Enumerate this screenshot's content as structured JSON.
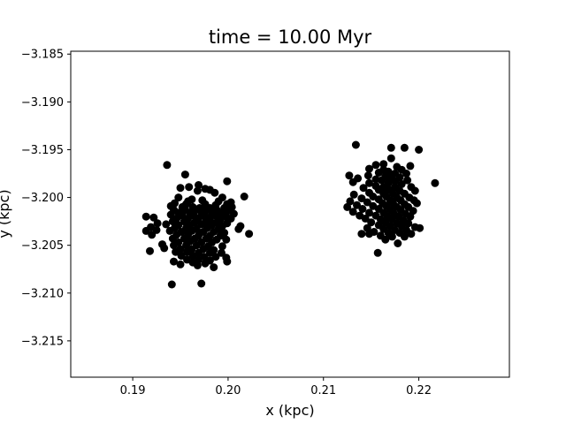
{
  "chart_data": {
    "type": "scatter",
    "title": "time = 10.00 Myr",
    "xlabel": "x (kpc)",
    "ylabel": "y (kpc)",
    "xlim": [
      0.1835,
      0.2295
    ],
    "ylim": [
      -3.2188,
      -3.1847
    ],
    "xticks": [
      0.19,
      0.2,
      0.21,
      0.22
    ],
    "xtick_labels": [
      "0.19",
      "0.20",
      "0.21",
      "0.22"
    ],
    "yticks": [
      -3.185,
      -3.19,
      -3.195,
      -3.2,
      -3.205,
      -3.21,
      -3.215
    ],
    "ytick_labels": [
      "−3.185",
      "−3.190",
      "−3.195",
      "−3.200",
      "−3.205",
      "−3.210",
      "−3.215"
    ],
    "grid": false,
    "marker_color": "#000000",
    "series": [
      {
        "points": [
          [
            0.1936,
            -3.1966
          ],
          [
            0.1955,
            -3.1976
          ],
          [
            0.1999,
            -3.1983
          ],
          [
            0.1969,
            -3.1987
          ],
          [
            0.1959,
            -3.1989
          ],
          [
            0.195,
            -3.199
          ],
          [
            0.1976,
            -3.1991
          ],
          [
            0.1968,
            -3.1993
          ],
          [
            0.1981,
            -3.1992
          ],
          [
            0.1986,
            -3.1995
          ],
          [
            0.2017,
            -3.1999
          ],
          [
            0.1994,
            -3.2
          ],
          [
            0.1948,
            -3.2
          ],
          [
            0.1962,
            -3.2002
          ],
          [
            0.1973,
            -3.2003
          ],
          [
            0.1958,
            -3.2004
          ],
          [
            0.199,
            -3.2004
          ],
          [
            0.2003,
            -3.2005
          ],
          [
            0.1944,
            -3.2006
          ],
          [
            0.1956,
            -3.2007
          ],
          [
            0.1976,
            -3.2007
          ],
          [
            0.1987,
            -3.2008
          ],
          [
            0.1999,
            -3.2007
          ],
          [
            0.194,
            -3.2009
          ],
          [
            0.1952,
            -3.201
          ],
          [
            0.1963,
            -3.201
          ],
          [
            0.197,
            -3.2011
          ],
          [
            0.1981,
            -3.2011
          ],
          [
            0.1996,
            -3.2011
          ],
          [
            0.2004,
            -3.201
          ],
          [
            0.1943,
            -3.2013
          ],
          [
            0.1955,
            -3.2013
          ],
          [
            0.1966,
            -3.2013
          ],
          [
            0.1976,
            -3.2014
          ],
          [
            0.1988,
            -3.2013
          ],
          [
            0.2,
            -3.2014
          ],
          [
            0.1948,
            -3.2016
          ],
          [
            0.196,
            -3.2016
          ],
          [
            0.1972,
            -3.2016
          ],
          [
            0.1983,
            -3.2017
          ],
          [
            0.1993,
            -3.2016
          ],
          [
            0.2006,
            -3.2017
          ],
          [
            0.194,
            -3.2018
          ],
          [
            0.1952,
            -3.2019
          ],
          [
            0.1964,
            -3.2019
          ],
          [
            0.1976,
            -3.202
          ],
          [
            0.1987,
            -3.2019
          ],
          [
            0.1998,
            -3.202
          ],
          [
            0.1914,
            -3.202
          ],
          [
            0.1922,
            -3.2021
          ],
          [
            0.1946,
            -3.2022
          ],
          [
            0.1958,
            -3.2022
          ],
          [
            0.1969,
            -3.2022
          ],
          [
            0.1981,
            -3.2023
          ],
          [
            0.1992,
            -3.2023
          ],
          [
            0.2003,
            -3.2022
          ],
          [
            0.1942,
            -3.2025
          ],
          [
            0.1954,
            -3.2025
          ],
          [
            0.1965,
            -3.2026
          ],
          [
            0.1977,
            -3.2025
          ],
          [
            0.1988,
            -3.2026
          ],
          [
            0.1999,
            -3.2027
          ],
          [
            0.1926,
            -3.2027
          ],
          [
            0.1935,
            -3.2028
          ],
          [
            0.1948,
            -3.2029
          ],
          [
            0.196,
            -3.2029
          ],
          [
            0.1972,
            -3.2028
          ],
          [
            0.1983,
            -3.2029
          ],
          [
            0.1994,
            -3.203
          ],
          [
            0.2013,
            -3.203
          ],
          [
            0.1919,
            -3.2031
          ],
          [
            0.1944,
            -3.2032
          ],
          [
            0.1956,
            -3.2032
          ],
          [
            0.1967,
            -3.2033
          ],
          [
            0.1978,
            -3.2032
          ],
          [
            0.199,
            -3.2033
          ],
          [
            0.2011,
            -3.2033
          ],
          [
            0.1914,
            -3.2035
          ],
          [
            0.1925,
            -3.2034
          ],
          [
            0.1939,
            -3.2035
          ],
          [
            0.1951,
            -3.2036
          ],
          [
            0.1962,
            -3.2035
          ],
          [
            0.1974,
            -3.2036
          ],
          [
            0.1985,
            -3.2036
          ],
          [
            0.1996,
            -3.2037
          ],
          [
            0.2022,
            -3.2038
          ],
          [
            0.192,
            -3.2039
          ],
          [
            0.1946,
            -3.2039
          ],
          [
            0.1958,
            -3.2039
          ],
          [
            0.1969,
            -3.204
          ],
          [
            0.1981,
            -3.204
          ],
          [
            0.1992,
            -3.204
          ],
          [
            0.1942,
            -3.2043
          ],
          [
            0.1954,
            -3.2043
          ],
          [
            0.1965,
            -3.2043
          ],
          [
            0.1977,
            -3.2043
          ],
          [
            0.1988,
            -3.2044
          ],
          [
            0.1998,
            -3.2044
          ],
          [
            0.1948,
            -3.2047
          ],
          [
            0.196,
            -3.2046
          ],
          [
            0.1972,
            -3.2047
          ],
          [
            0.1983,
            -3.2047
          ],
          [
            0.1931,
            -3.2049
          ],
          [
            0.1943,
            -3.205
          ],
          [
            0.1956,
            -3.205
          ],
          [
            0.1967,
            -3.205
          ],
          [
            0.1979,
            -3.2051
          ],
          [
            0.1994,
            -3.2051
          ],
          [
            0.1933,
            -3.2053
          ],
          [
            0.195,
            -3.2054
          ],
          [
            0.1962,
            -3.2054
          ],
          [
            0.1974,
            -3.2054
          ],
          [
            0.1985,
            -3.2055
          ],
          [
            0.1918,
            -3.2056
          ],
          [
            0.1945,
            -3.2057
          ],
          [
            0.1957,
            -3.2057
          ],
          [
            0.1969,
            -3.2058
          ],
          [
            0.1981,
            -3.2058
          ],
          [
            0.1993,
            -3.2058
          ],
          [
            0.1951,
            -3.2061
          ],
          [
            0.1963,
            -3.2061
          ],
          [
            0.1975,
            -3.2062
          ],
          [
            0.1987,
            -3.2062
          ],
          [
            0.1998,
            -3.2063
          ],
          [
            0.1957,
            -3.2065
          ],
          [
            0.1969,
            -3.2065
          ],
          [
            0.1981,
            -3.2066
          ],
          [
            0.1943,
            -3.2067
          ],
          [
            0.1963,
            -3.2068
          ],
          [
            0.1976,
            -3.2069
          ],
          [
            0.1999,
            -3.2067
          ],
          [
            0.195,
            -3.207
          ],
          [
            0.1968,
            -3.2071
          ],
          [
            0.1985,
            -3.2073
          ],
          [
            0.1941,
            -3.2091
          ],
          [
            0.1972,
            -3.209
          ]
        ]
      },
      {
        "points": [
          [
            0.2134,
            -3.1945
          ],
          [
            0.2171,
            -3.1948
          ],
          [
            0.2185,
            -3.1948
          ],
          [
            0.22,
            -3.195
          ],
          [
            0.2171,
            -3.1959
          ],
          [
            0.2163,
            -3.1965
          ],
          [
            0.2155,
            -3.1966
          ],
          [
            0.2177,
            -3.1968
          ],
          [
            0.2191,
            -3.1967
          ],
          [
            0.2148,
            -3.197
          ],
          [
            0.2163,
            -3.1971
          ],
          [
            0.2182,
            -3.1971
          ],
          [
            0.2168,
            -3.1973
          ],
          [
            0.2158,
            -3.1974
          ],
          [
            0.2175,
            -3.1975
          ],
          [
            0.2187,
            -3.1975
          ],
          [
            0.2127,
            -3.1977
          ],
          [
            0.2147,
            -3.1977
          ],
          [
            0.2165,
            -3.1978
          ],
          [
            0.2171,
            -3.1979
          ],
          [
            0.218,
            -3.1979
          ],
          [
            0.2136,
            -3.198
          ],
          [
            0.2155,
            -3.1981
          ],
          [
            0.2161,
            -3.1982
          ],
          [
            0.2175,
            -3.1983
          ],
          [
            0.2188,
            -3.1982
          ],
          [
            0.2131,
            -3.1984
          ],
          [
            0.2148,
            -3.1985
          ],
          [
            0.2168,
            -3.1985
          ],
          [
            0.2182,
            -3.1986
          ],
          [
            0.2217,
            -3.1985
          ],
          [
            0.2155,
            -3.1988
          ],
          [
            0.2163,
            -3.1989
          ],
          [
            0.2175,
            -3.1989
          ],
          [
            0.2192,
            -3.1989
          ],
          [
            0.2142,
            -3.199
          ],
          [
            0.2158,
            -3.1992
          ],
          [
            0.2169,
            -3.1992
          ],
          [
            0.218,
            -3.1993
          ],
          [
            0.2196,
            -3.1993
          ],
          [
            0.2148,
            -3.1995
          ],
          [
            0.2163,
            -3.1996
          ],
          [
            0.2173,
            -3.1996
          ],
          [
            0.2185,
            -3.1996
          ],
          [
            0.2132,
            -3.1997
          ],
          [
            0.2152,
            -3.1999
          ],
          [
            0.2166,
            -3.1999
          ],
          [
            0.2177,
            -3.2
          ],
          [
            0.219,
            -3.2
          ],
          [
            0.214,
            -3.2001
          ],
          [
            0.2158,
            -3.2002
          ],
          [
            0.217,
            -3.2003
          ],
          [
            0.2181,
            -3.2003
          ],
          [
            0.2195,
            -3.2003
          ],
          [
            0.2128,
            -3.2004
          ],
          [
            0.2146,
            -3.2005
          ],
          [
            0.2162,
            -3.2006
          ],
          [
            0.2173,
            -3.2006
          ],
          [
            0.2185,
            -3.2007
          ],
          [
            0.2198,
            -3.2006
          ],
          [
            0.2135,
            -3.2008
          ],
          [
            0.2152,
            -3.2009
          ],
          [
            0.2166,
            -3.2009
          ],
          [
            0.2177,
            -3.201
          ],
          [
            0.2189,
            -3.201
          ],
          [
            0.2125,
            -3.201
          ],
          [
            0.2141,
            -3.2012
          ],
          [
            0.2158,
            -3.2012
          ],
          [
            0.217,
            -3.2013
          ],
          [
            0.2181,
            -3.2013
          ],
          [
            0.2194,
            -3.2014
          ],
          [
            0.2131,
            -3.2015
          ],
          [
            0.2148,
            -3.2016
          ],
          [
            0.2163,
            -3.2016
          ],
          [
            0.2174,
            -3.2017
          ],
          [
            0.2186,
            -3.2017
          ],
          [
            0.2138,
            -3.2019
          ],
          [
            0.2155,
            -3.2019
          ],
          [
            0.2167,
            -3.202
          ],
          [
            0.2179,
            -3.202
          ],
          [
            0.2191,
            -3.202
          ],
          [
            0.2144,
            -3.2022
          ],
          [
            0.216,
            -3.2023
          ],
          [
            0.2172,
            -3.2023
          ],
          [
            0.2184,
            -3.2024
          ],
          [
            0.215,
            -3.2026
          ],
          [
            0.2165,
            -3.2026
          ],
          [
            0.2177,
            -3.2027
          ],
          [
            0.2189,
            -3.2027
          ],
          [
            0.2158,
            -3.2029
          ],
          [
            0.217,
            -3.203
          ],
          [
            0.2182,
            -3.203
          ],
          [
            0.2196,
            -3.2031
          ],
          [
            0.2201,
            -3.2032
          ],
          [
            0.2146,
            -3.2032
          ],
          [
            0.2163,
            -3.2033
          ],
          [
            0.2175,
            -3.2034
          ],
          [
            0.2187,
            -3.2034
          ],
          [
            0.2153,
            -3.2036
          ],
          [
            0.2168,
            -3.2037
          ],
          [
            0.218,
            -3.2037
          ],
          [
            0.2192,
            -3.2038
          ],
          [
            0.214,
            -3.2038
          ],
          [
            0.216,
            -3.204
          ],
          [
            0.2172,
            -3.2041
          ],
          [
            0.2185,
            -3.2041
          ],
          [
            0.2148,
            -3.2038
          ],
          [
            0.2165,
            -3.2044
          ],
          [
            0.2178,
            -3.2048
          ],
          [
            0.2157,
            -3.2058
          ]
        ]
      }
    ]
  }
}
